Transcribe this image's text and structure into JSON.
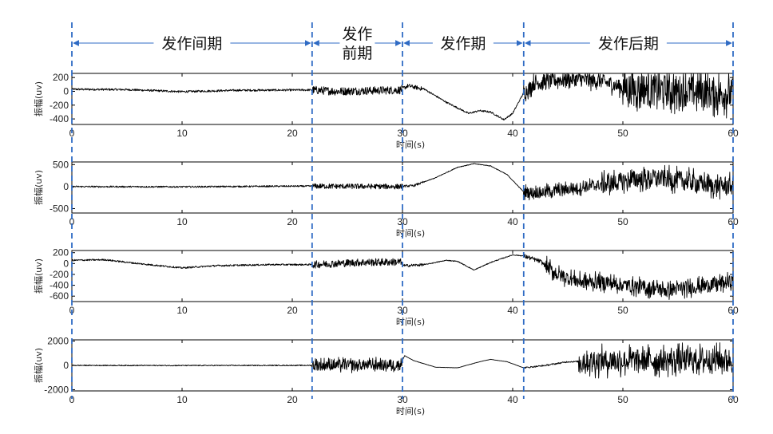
{
  "phases": [
    {
      "label": "发作间期",
      "start": 0,
      "end": 21.8
    },
    {
      "label": "发作",
      "label2": "前期",
      "start": 21.8,
      "end": 30
    },
    {
      "label": "发作期",
      "start": 30,
      "end": 41
    },
    {
      "label": "发作后期",
      "start": 41,
      "end": 60
    }
  ],
  "accent_color": "#2f6bc4",
  "chart_data": [
    {
      "type": "line",
      "title": "",
      "xlabel": "时间",
      "xlabel_unit": "(s)",
      "ylabel": "振幅(uv)",
      "xlim": [
        0,
        60
      ],
      "ylim": [
        -480,
        260
      ],
      "xticks": [
        0,
        10,
        20,
        30,
        40,
        50,
        60
      ],
      "yticks": [
        200,
        0,
        -200,
        -400
      ],
      "series": [
        {
          "values_desc": "",
          "points": [
            [
              0,
              30
            ],
            [
              5,
              25
            ],
            [
              10,
              -5
            ],
            [
              15,
              15
            ],
            [
              21.8,
              20
            ],
            [
              24,
              0
            ],
            [
              27,
              10
            ],
            [
              29.8,
              20
            ],
            [
              30.5,
              80
            ],
            [
              32,
              30
            ],
            [
              34,
              -160
            ],
            [
              36,
              -320
            ],
            [
              37,
              -280
            ],
            [
              38,
              -300
            ],
            [
              39.2,
              -410
            ],
            [
              40,
              -320
            ],
            [
              41,
              -20
            ],
            [
              42,
              120
            ],
            [
              45,
              180
            ],
            [
              48,
              150
            ],
            [
              50,
              50
            ],
            [
              53,
              20
            ],
            [
              56,
              0
            ],
            [
              60,
              -40
            ]
          ]
        }
      ],
      "noise": [
        [
          0,
          21.8,
          15
        ],
        [
          21.8,
          30,
          60
        ],
        [
          30,
          32,
          30
        ],
        [
          32,
          41,
          12
        ],
        [
          41,
          50,
          100
        ],
        [
          50,
          60,
          230
        ]
      ]
    },
    {
      "type": "line",
      "title": "",
      "xlabel": "时间",
      "xlabel_unit": "(s)",
      "ylabel": "振幅(uv)",
      "xlim": [
        0,
        60
      ],
      "ylim": [
        -600,
        560
      ],
      "xticks": [
        0,
        10,
        20,
        30,
        40,
        50,
        60
      ],
      "yticks": [
        500,
        0,
        -500
      ],
      "series": [
        {
          "values_desc": "",
          "points": [
            [
              0,
              0
            ],
            [
              10,
              -5
            ],
            [
              20,
              10
            ],
            [
              21.8,
              10
            ],
            [
              29.8,
              0
            ],
            [
              30,
              10
            ],
            [
              31,
              20
            ],
            [
              33,
              200
            ],
            [
              35,
              440
            ],
            [
              36.5,
              520
            ],
            [
              38,
              470
            ],
            [
              39.5,
              270
            ],
            [
              41,
              -120
            ],
            [
              42,
              -140
            ],
            [
              45,
              -60
            ],
            [
              48,
              40
            ],
            [
              51,
              170
            ],
            [
              53,
              200
            ],
            [
              56,
              120
            ],
            [
              58,
              20
            ],
            [
              60,
              10
            ]
          ]
        }
      ],
      "noise": [
        [
          0,
          21.8,
          18
        ],
        [
          21.8,
          30,
          60
        ],
        [
          30,
          32,
          25
        ],
        [
          32,
          41,
          8
        ],
        [
          41,
          48,
          120
        ],
        [
          48,
          60,
          200
        ]
      ]
    },
    {
      "type": "line",
      "title": "",
      "xlabel": "时间",
      "xlabel_unit": "(s)",
      "ylabel": "振幅(uv)",
      "xlim": [
        0,
        60
      ],
      "ylim": [
        -700,
        240
      ],
      "xticks": [
        0,
        10,
        20,
        30,
        40,
        50,
        60
      ],
      "yticks": [
        200,
        0,
        -200,
        -400,
        -600
      ],
      "series": [
        {
          "values_desc": "",
          "points": [
            [
              0,
              60
            ],
            [
              3,
              70
            ],
            [
              6,
              0
            ],
            [
              10,
              -80
            ],
            [
              13,
              -40
            ],
            [
              18,
              -20
            ],
            [
              21.8,
              -20
            ],
            [
              26,
              20
            ],
            [
              29.8,
              30
            ],
            [
              30.2,
              -40
            ],
            [
              32,
              -20
            ],
            [
              34,
              60
            ],
            [
              35,
              40
            ],
            [
              36.5,
              -120
            ],
            [
              38,
              20
            ],
            [
              40,
              160
            ],
            [
              41,
              140
            ],
            [
              42.5,
              40
            ],
            [
              44,
              -200
            ],
            [
              46,
              -330
            ],
            [
              48,
              -340
            ],
            [
              51,
              -420
            ],
            [
              54,
              -490
            ],
            [
              57,
              -420
            ],
            [
              60,
              -330
            ]
          ]
        }
      ],
      "noise": [
        [
          0,
          21.8,
          15
        ],
        [
          21.8,
          30,
          70
        ],
        [
          30,
          32,
          25
        ],
        [
          32,
          41,
          8
        ],
        [
          41,
          43,
          40
        ],
        [
          43,
          60,
          120
        ]
      ]
    },
    {
      "type": "line",
      "title": "",
      "xlabel": "时间",
      "xlabel_unit": "(s)",
      "ylabel": "振幅(uv)",
      "xlim": [
        0,
        60
      ],
      "ylim": [
        -2100,
        2100
      ],
      "xticks": [
        0,
        10,
        20,
        30,
        40,
        50,
        60
      ],
      "yticks": [
        2000,
        0,
        -2000
      ],
      "ytick_labels": [
        "2000",
        "0",
        "-2000"
      ],
      "series": [
        {
          "values_desc": "",
          "points": [
            [
              0,
              0
            ],
            [
              10,
              -10
            ],
            [
              20,
              0
            ],
            [
              21.8,
              0
            ],
            [
              29.8,
              50
            ],
            [
              30.2,
              800
            ],
            [
              31,
              400
            ],
            [
              33,
              -150
            ],
            [
              35,
              -200
            ],
            [
              37,
              300
            ],
            [
              38,
              500
            ],
            [
              39.5,
              300
            ],
            [
              41,
              -200
            ],
            [
              43,
              0
            ],
            [
              45,
              300
            ],
            [
              48,
              350
            ],
            [
              52,
              400
            ],
            [
              56,
              450
            ],
            [
              60,
              500
            ]
          ]
        }
      ],
      "noise": [
        [
          0,
          21.8,
          40
        ],
        [
          21.8,
          30,
          420
        ],
        [
          30,
          41,
          12
        ],
        [
          41,
          46,
          60
        ],
        [
          46,
          60,
          900
        ]
      ]
    }
  ]
}
